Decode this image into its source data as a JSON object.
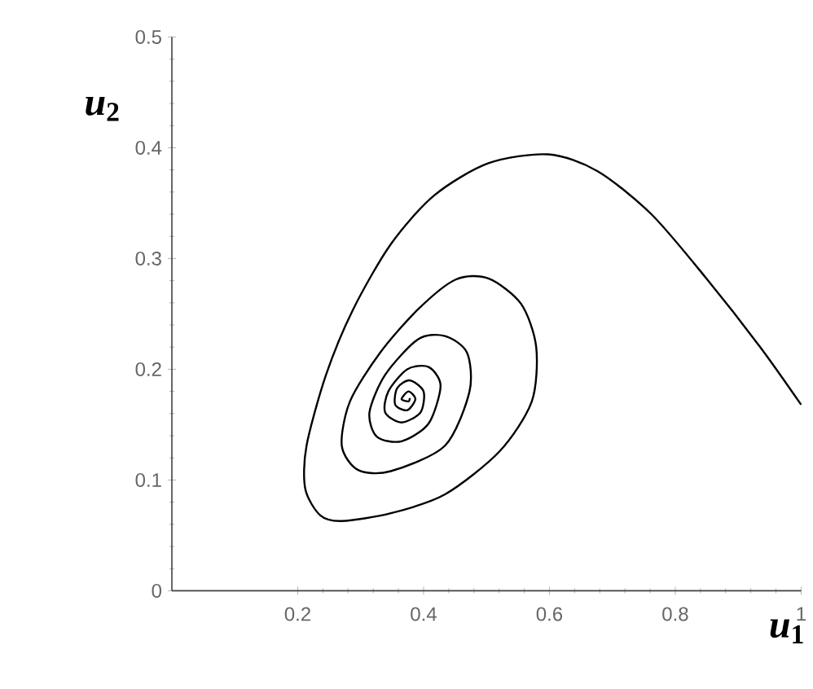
{
  "chart_data": {
    "type": "line",
    "xlabel": "*u*$_{1}$",
    "ylabel": "*u*$_{2}$",
    "xlim": [
      0,
      1
    ],
    "ylim": [
      0,
      0.5
    ],
    "xticks": [
      0.2,
      0.4,
      0.6,
      0.8,
      1
    ],
    "yticks": [
      0,
      0.1,
      0.2,
      0.3,
      0.4,
      0.5
    ],
    "marker": "none",
    "line_style": "solid",
    "series": [
      {
        "color": "#000000",
        "x": [
          1.0,
          0.935,
          0.848,
          0.762,
          0.676,
          0.598,
          0.503,
          0.417,
          0.348,
          0.288,
          0.245,
          0.214,
          0.212,
          0.236,
          0.27,
          0.348,
          0.434,
          0.521,
          0.572,
          0.579,
          0.555,
          0.503,
          0.451,
          0.391,
          0.331,
          0.283,
          0.27,
          0.296,
          0.348,
          0.434,
          0.473,
          0.469,
          0.434,
          0.391,
          0.339,
          0.314,
          0.326,
          0.365,
          0.408,
          0.427,
          0.408,
          0.374,
          0.344,
          0.339,
          0.365,
          0.395,
          0.4,
          0.378,
          0.358,
          0.355,
          0.374,
          0.387,
          0.376,
          0.365,
          0.376,
          0.378
        ],
        "values": [
          0.168,
          0.22,
          0.283,
          0.34,
          0.379,
          0.394,
          0.386,
          0.357,
          0.313,
          0.254,
          0.195,
          0.131,
          0.092,
          0.068,
          0.063,
          0.07,
          0.087,
          0.126,
          0.171,
          0.22,
          0.259,
          0.282,
          0.281,
          0.254,
          0.215,
          0.171,
          0.131,
          0.109,
          0.108,
          0.131,
          0.18,
          0.215,
          0.23,
          0.227,
          0.195,
          0.161,
          0.139,
          0.135,
          0.151,
          0.185,
          0.202,
          0.2,
          0.18,
          0.161,
          0.152,
          0.161,
          0.18,
          0.19,
          0.183,
          0.168,
          0.163,
          0.173,
          0.18,
          0.173,
          0.171,
          0.174
        ]
      }
    ]
  }
}
